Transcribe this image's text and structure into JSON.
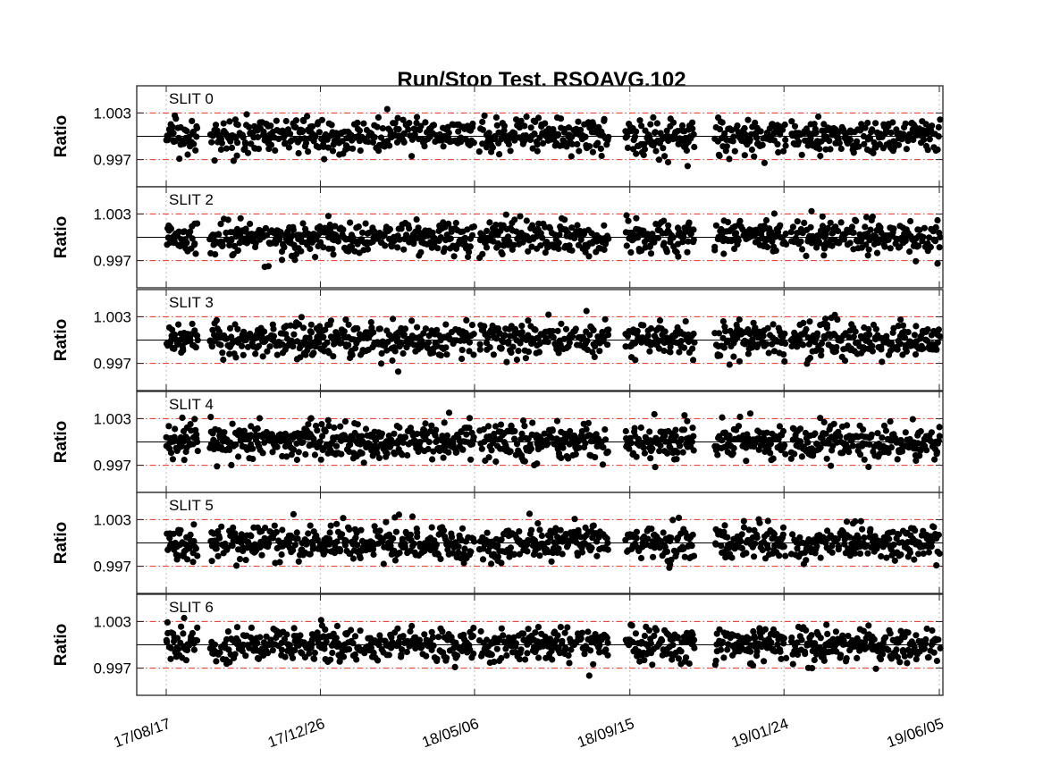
{
  "chart_data": {
    "type": "scatter",
    "title": "Run/Stop Test, RSOAVG.102",
    "ylabel": "Ratio",
    "xlabel": "",
    "x_tick_labels": [
      "17/08/17",
      "17/12/26",
      "18/05/06",
      "18/09/15",
      "19/01/24",
      "19/06/05"
    ],
    "x_tick_dates": [
      "2017-08-17",
      "2017-12-26",
      "2018-05-06",
      "2018-09-15",
      "2019-01-24",
      "2019-06-05"
    ],
    "y_tick_labels": [
      "1.003",
      "0.997"
    ],
    "y_ticks": [
      1.003,
      0.997
    ],
    "ylim": [
      0.9935,
      1.0065
    ],
    "reference_lines": {
      "center": 1.0,
      "upper_limit": 1.003,
      "lower_limit": 0.997,
      "center_color": "#000000",
      "limit_color": "#e8302a",
      "limit_style": "dash-dot"
    },
    "grid": "vertical dotted at x ticks",
    "marker_color": "#000000",
    "panels": [
      {
        "label": "SLIT 0"
      },
      {
        "label": "SLIT 2"
      },
      {
        "label": "SLIT 3"
      },
      {
        "label": "SLIT 4"
      },
      {
        "label": "SLIT 5"
      },
      {
        "label": "SLIT 6"
      }
    ],
    "series_note_points": "~600 daily ratio points per slit, scattered between about 0.995 and 1.004 around 1.000"
  }
}
